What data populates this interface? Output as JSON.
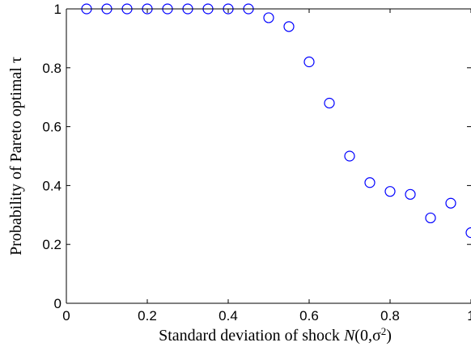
{
  "chart_data": {
    "type": "scatter",
    "title": "",
    "xlabel_parts": [
      "Standard deviation of shock ",
      "N",
      "(0,σ",
      "2",
      ")"
    ],
    "ylabel_parts": [
      "Probability of Pareto optimal ",
      "τ"
    ],
    "xlim": [
      0,
      1
    ],
    "ylim": [
      0,
      1
    ],
    "x_ticks": [
      0,
      0.2,
      0.4,
      0.6,
      0.8,
      1
    ],
    "x_tick_labels": [
      "0",
      "0.2",
      "0.4",
      "0.6",
      "0.8",
      "1"
    ],
    "y_ticks": [
      0,
      0.2,
      0.4,
      0.6,
      0.8,
      1
    ],
    "y_tick_labels": [
      "0",
      "0.2",
      "0.4",
      "0.6",
      "0.8",
      "1"
    ],
    "grid": false,
    "legend": "none",
    "series": [
      {
        "marker": "circle-open",
        "color": "#0000ff",
        "x": [
          0.05,
          0.1,
          0.15,
          0.2,
          0.25,
          0.3,
          0.35,
          0.4,
          0.45,
          0.5,
          0.55,
          0.6,
          0.65,
          0.7,
          0.75,
          0.8,
          0.85,
          0.9,
          0.95,
          1.0
        ],
        "y": [
          1.0,
          1.0,
          1.0,
          1.0,
          1.0,
          1.0,
          1.0,
          1.0,
          1.0,
          0.97,
          0.94,
          0.82,
          0.68,
          0.5,
          0.41,
          0.38,
          0.37,
          0.29,
          0.34,
          0.24
        ]
      }
    ]
  }
}
